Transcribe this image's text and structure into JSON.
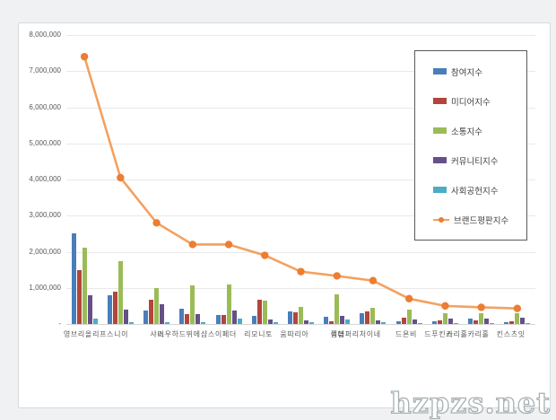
{
  "watermark": "hzpzs.net",
  "colors": {
    "page_background": "#eff1f2",
    "panel_background": "#ffffff",
    "panel_border": "#d8dadb",
    "gridline": "#e9e9e9",
    "axis_text": "#595959",
    "legend_border": "#595959",
    "watermark_outline": "#a8b0b4"
  },
  "chart_data": {
    "type": "bar",
    "subtype": "grouped bars with overlaid line series",
    "title": "",
    "xlabel": "",
    "ylabel": "",
    "ylim": [
      0,
      8000000
    ],
    "grid": true,
    "legend_position": "right-inside",
    "yticks": [
      "8,000,000",
      "7,000,000",
      "6,000,000",
      "5,000,000",
      "4,000,000",
      "3,000,000",
      "2,000,000",
      "1,000,000",
      "-"
    ],
    "categories": [
      "올리브영",
      "이니스프리",
      "미샤",
      "에뛰드하우스",
      "더페이스샵",
      "토니모리",
      "아리따움",
      "더샘",
      "네이처리퍼블릭",
      "비욘드",
      "스킨푸드",
      "홀리카홀리카",
      "잇츠스킨"
    ],
    "series": [
      {
        "name": "참여지수",
        "type": "bar",
        "color": "#4A7EBB",
        "values": [
          2500000,
          800000,
          370000,
          430000,
          250000,
          220000,
          340000,
          200000,
          290000,
          80000,
          70000,
          160000,
          60000
        ]
      },
      {
        "name": "미디어지수",
        "type": "bar",
        "color": "#B2453C",
        "values": [
          1500000,
          900000,
          680000,
          280000,
          250000,
          680000,
          330000,
          80000,
          350000,
          170000,
          90000,
          100000,
          80000
        ]
      },
      {
        "name": "소통지수",
        "type": "bar",
        "color": "#9BBB59",
        "values": [
          2100000,
          1750000,
          1000000,
          1080000,
          1100000,
          640000,
          470000,
          820000,
          440000,
          400000,
          290000,
          290000,
          300000
        ]
      },
      {
        "name": "커뮤니티지수",
        "type": "bar",
        "color": "#655089",
        "values": [
          800000,
          400000,
          540000,
          270000,
          370000,
          120000,
          100000,
          230000,
          100000,
          130000,
          150000,
          140000,
          170000
        ]
      },
      {
        "name": "사회공헌지수",
        "type": "bar",
        "color": "#4BACC6",
        "values": [
          150000,
          40000,
          40000,
          40000,
          150000,
          40000,
          60000,
          130000,
          40000,
          30000,
          30000,
          30000,
          30000
        ]
      },
      {
        "name": "브랜드평판지수",
        "type": "line",
        "color": "#F4A15F",
        "marker_color": "#ED7D31",
        "values": [
          7400000,
          4050000,
          2800000,
          2200000,
          2200000,
          1900000,
          1450000,
          1330000,
          1200000,
          700000,
          500000,
          460000,
          430000
        ]
      }
    ]
  }
}
